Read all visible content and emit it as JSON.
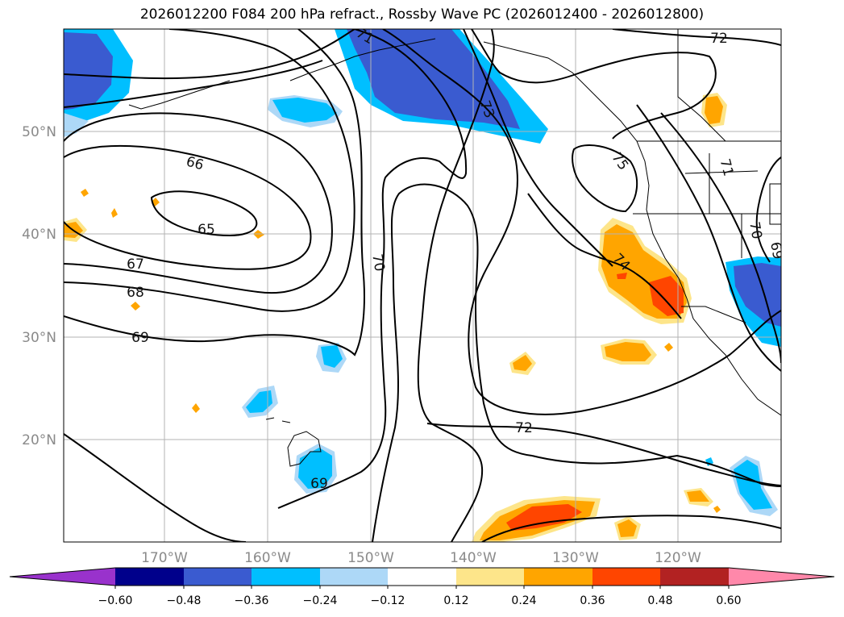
{
  "title": "2026012200 F084 200 hPa refract., Rossby Wave PC (2026012400 - 2026012800)",
  "map": {
    "lon_labels": [
      "170°W",
      "160°W",
      "150°W",
      "140°W",
      "130°W",
      "120°W"
    ],
    "lat_labels": [
      "50°N",
      "40°N",
      "30°N",
      "20°N"
    ],
    "contour_labels": [
      "66",
      "65",
      "67",
      "68",
      "69",
      "70",
      "72",
      "73",
      "75",
      "71",
      "74",
      "69",
      "72",
      "70",
      "71",
      "69"
    ]
  },
  "colorbar": {
    "tick_labels": [
      "−0.60",
      "−0.48",
      "−0.36",
      "−0.24",
      "−0.12",
      "0.12",
      "0.24",
      "0.36",
      "0.48",
      "0.60"
    ],
    "colors": [
      "#9932cc",
      "#00008b",
      "#3a5bd0",
      "#00bfff",
      "#add8f7",
      "#ffffff",
      "#fde58a",
      "#ffa500",
      "#ff4500",
      "#b22222",
      "#ff88aa"
    ]
  }
}
